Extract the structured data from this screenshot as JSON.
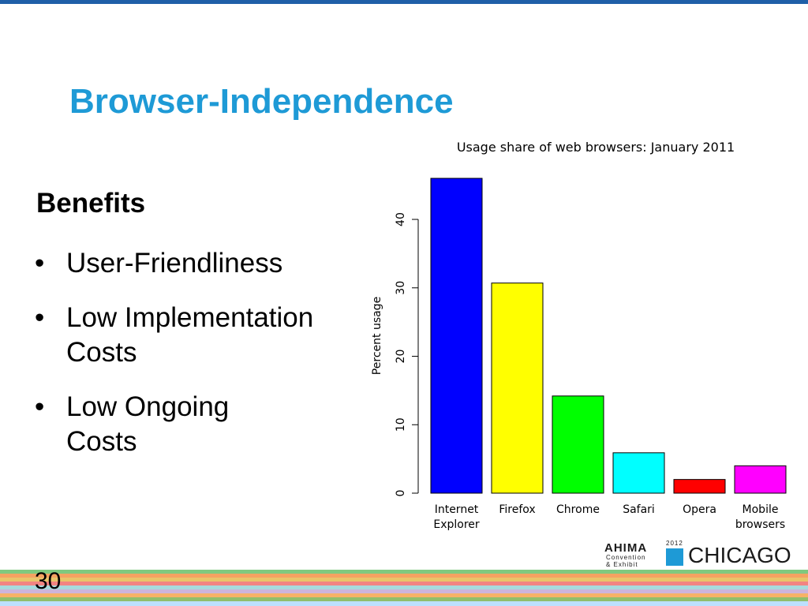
{
  "slide": {
    "title": "Browser-Independence",
    "benefits_heading": "Benefits",
    "bullet_glyph": "•",
    "bullets": [
      "User-Friendliness",
      "Low Implementation Costs",
      "Low Ongoing Costs"
    ],
    "page_number": "30"
  },
  "logo": {
    "org": "AHIMA",
    "line1": "Convention",
    "line2": "& Exhibit",
    "year": "2012",
    "city": "CHICAGO",
    "accent_color": "#1e9ad6"
  },
  "colors": {
    "title": "#1e9ad6",
    "top_rule": "#1f5fa8"
  },
  "chart_data": {
    "type": "bar",
    "title": "Usage share of web browsers: January 2011",
    "ylabel": "Percent usage",
    "xlabel": "",
    "categories": [
      [
        "Internet",
        "Explorer"
      ],
      [
        "Firefox"
      ],
      [
        "Chrome"
      ],
      [
        "Safari"
      ],
      [
        "Opera"
      ],
      [
        "Mobile",
        "browsers"
      ]
    ],
    "values": [
      46.0,
      30.7,
      14.2,
      5.9,
      2.0,
      4.0
    ],
    "colors": [
      "#0000ff",
      "#ffff00",
      "#00ff00",
      "#00ffff",
      "#ff0000",
      "#ff00ff"
    ],
    "ylim": [
      0,
      46
    ],
    "yticks": [
      0,
      10,
      20,
      30,
      40
    ],
    "grid": false,
    "legend": "none"
  }
}
